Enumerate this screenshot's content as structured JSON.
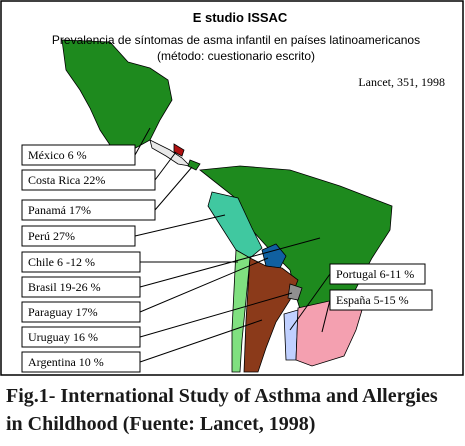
{
  "header": {
    "title": "E studio ISSAC",
    "subtitle": [
      "Prevalencia de síntomas de asma infantil en países latinoamericanos",
      "(método: cuestionario escrito)"
    ],
    "source": "Lancet, 351, 1998"
  },
  "labels": [
    "México 6 %",
    "Costa Rica 22%",
    "Panamá 17%",
    "Perú 27%",
    "Chile  6 -12 %",
    "Brasil 19-26 %",
    "Paraguay 17%",
    "Uruguay 16 %",
    "Argentina 10 %",
    "Portugal  6-11 %",
    "España 5-15 %"
  ],
  "caption": [
    "Fig.1- International Study of Asthma and Allergies",
    "in Childhood (Fuente: Lancet, 1998)"
  ]
}
